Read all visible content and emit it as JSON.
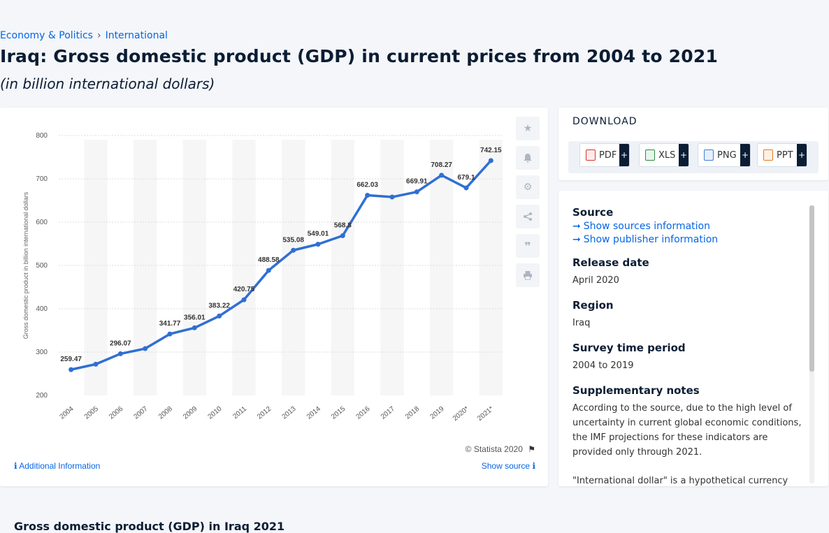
{
  "breadcrumb": {
    "item1": "Economy & Politics",
    "separator": "›",
    "item2": "International"
  },
  "page": {
    "title": "Iraq: Gross domestic product (GDP) in current prices from 2004 to 2021",
    "subtitle": "(in billion international dollars)"
  },
  "chart_data": {
    "type": "line",
    "title": "",
    "xlabel": "",
    "ylabel": "Gross domestic product in billion international dollars",
    "categories": [
      "2004",
      "2005",
      "2006",
      "2007",
      "2008",
      "2009",
      "2010",
      "2011",
      "2012",
      "2013",
      "2014",
      "2015",
      "2016",
      "2017",
      "2018",
      "2019",
      "2020*",
      "2021*"
    ],
    "values": [
      259.47,
      272.0,
      296.07,
      308.0,
      341.77,
      356.01,
      383.22,
      420.75,
      488.58,
      535.08,
      549.01,
      568.8,
      662.03,
      658.0,
      669.91,
      708.27,
      679.1,
      742.15
    ],
    "data_labels": [
      "259.47",
      "",
      "296.07",
      "",
      "341.77",
      "356.01",
      "383.22",
      "420.75",
      "488.58",
      "535.08",
      "549.01",
      "568.8",
      "662.03",
      "",
      "669.91",
      "708.27",
      "679.1",
      "742.15"
    ],
    "ylim": [
      200,
      800
    ],
    "yticks": [
      "200",
      "300",
      "400",
      "500",
      "600",
      "700",
      "800"
    ],
    "line_color": "#2f6fd3",
    "grid": true
  },
  "chart_footer": {
    "copyright": "© Statista 2020",
    "additional_info": "Additional Information",
    "show_source": "Show source"
  },
  "download": {
    "title": "DOWNLOAD",
    "buttons": [
      {
        "label": "PDF",
        "plus": "+",
        "color": "#d9342b"
      },
      {
        "label": "XLS",
        "plus": "+",
        "color": "#2e8b3e"
      },
      {
        "label": "PNG",
        "plus": "+",
        "color": "#3d7ed8"
      },
      {
        "label": "PPT",
        "plus": "+",
        "color": "#e07a25"
      }
    ]
  },
  "source_panel": {
    "source_heading": "Source",
    "show_sources": "Show sources information",
    "show_publisher": "Show publisher information",
    "release_heading": "Release date",
    "release_value": "April 2020",
    "region_heading": "Region",
    "region_value": "Iraq",
    "survey_heading": "Survey time period",
    "survey_value": "2004 to 2019",
    "notes_heading": "Supplementary notes",
    "notes_value": "According to the source, due to the high level of uncertainty in current global economic conditions, the IMF projections for these indicators are provided only through 2021.",
    "notes_value2": "\"International dollar\" is a hypothetical currency that"
  },
  "bottom": {
    "title": "Gross domestic product (GDP) in Iraq 2021"
  }
}
